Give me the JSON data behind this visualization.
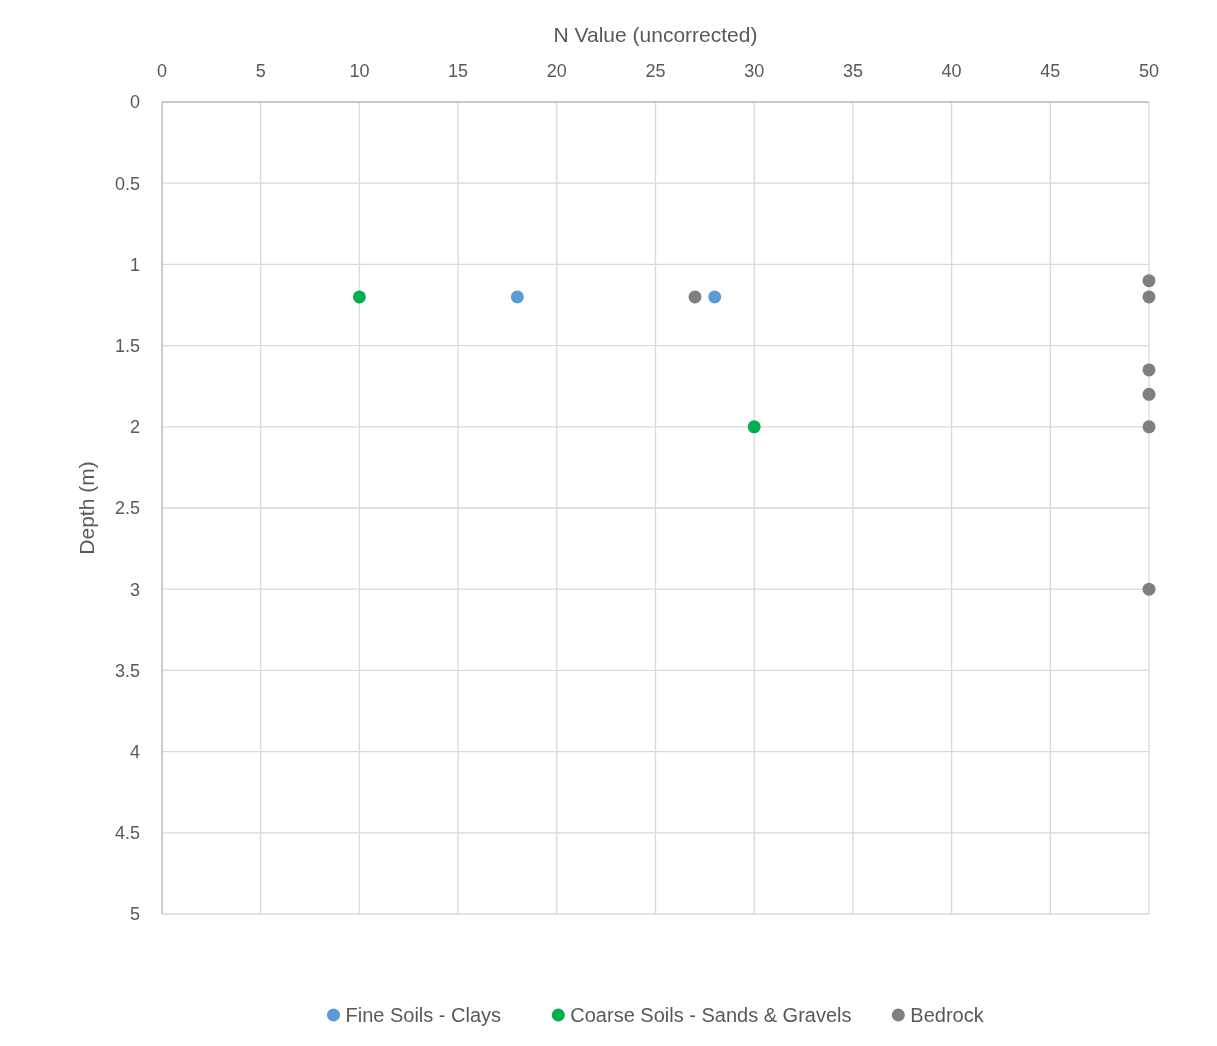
{
  "chart_data": {
    "type": "scatter",
    "xlabel": "N Value (uncorrected)",
    "ylabel": "Depth (m)",
    "xlim": [
      0,
      50
    ],
    "xticks": [
      0,
      5,
      10,
      15,
      20,
      25,
      30,
      35,
      40,
      45,
      50
    ],
    "ylim": [
      5,
      0
    ],
    "yticks": [
      0,
      0.5,
      1,
      1.5,
      2,
      2.5,
      3,
      3.5,
      4,
      4.5,
      5
    ],
    "grid": true,
    "legend": "bottom",
    "marker": "circle",
    "series": [
      {
        "name": "Fine Soils - Clays",
        "color": "#5b9bd5",
        "x": [
          18,
          28
        ],
        "values": [
          1.2,
          1.2
        ]
      },
      {
        "name": "Coarse Soils - Sands & Gravels",
        "color": "#00b050",
        "x": [
          10,
          30
        ],
        "values": [
          1.2,
          2
        ]
      },
      {
        "name": "Bedrock",
        "color": "#7f7f7f",
        "x": [
          27,
          50,
          50,
          50,
          50,
          50,
          50
        ],
        "values": [
          1.2,
          1.1,
          1.2,
          1.65,
          1.8,
          2,
          3
        ]
      }
    ]
  }
}
